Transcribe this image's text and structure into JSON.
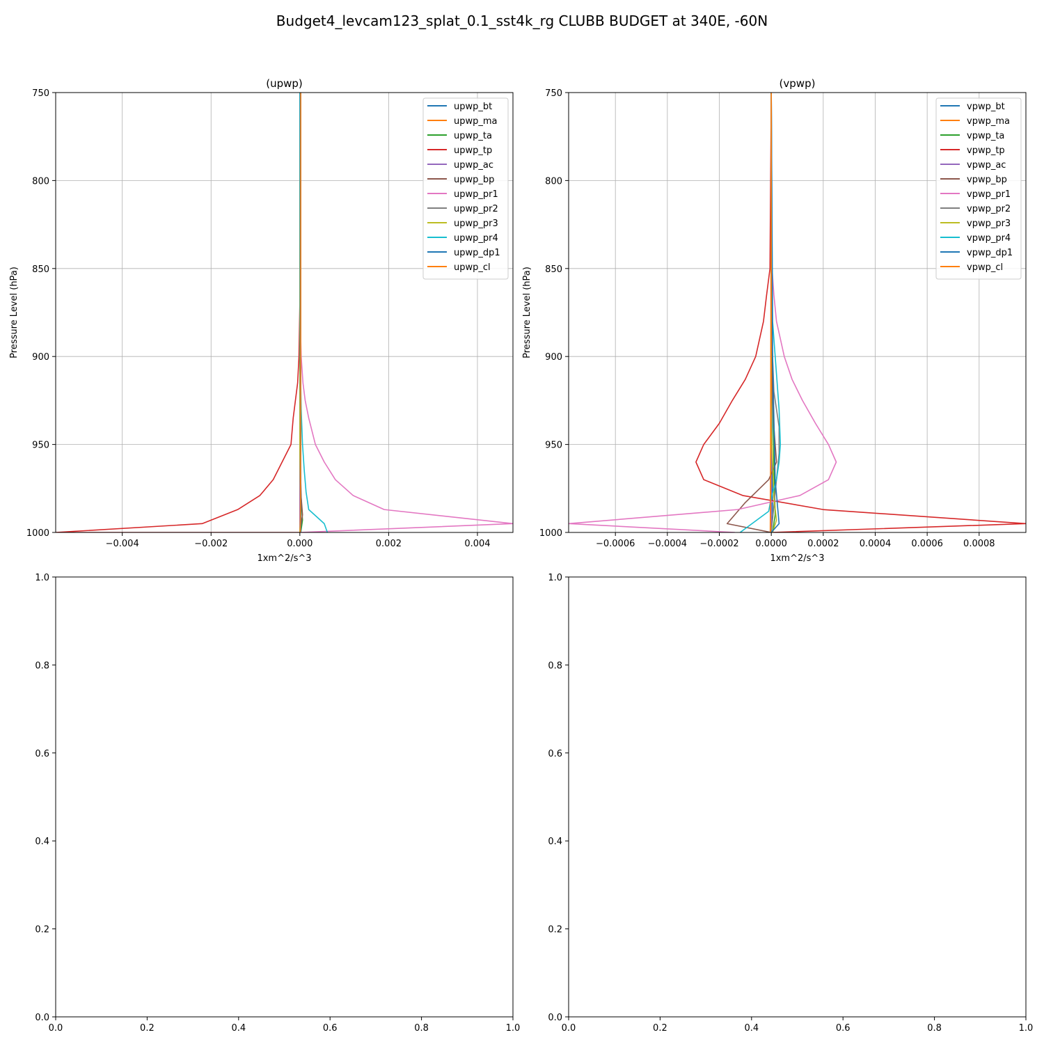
{
  "figure": {
    "title": "Budget4_levcam123_splat_0.1_sst4k_rg CLUBB BUDGET at 340E, -60N"
  },
  "colors": {
    "bt": "#1f77b4",
    "ma": "#ff7f0e",
    "ta": "#2ca02c",
    "tp": "#d62728",
    "ac": "#9467bd",
    "bp": "#8c564b",
    "pr1": "#e377c2",
    "pr2": "#7f7f7f",
    "pr3": "#bcbd22",
    "pr4": "#17becf",
    "dp1": "#1f77b4",
    "cl": "#ff7f0e"
  },
  "chart_data": [
    {
      "type": "line",
      "title": "(upwp)",
      "xlabel": "1xm^2/s^3",
      "ylabel": "Pressure Level (hPa)",
      "xlim": [
        -0.0055,
        0.0048
      ],
      "ylim": [
        1000,
        750
      ],
      "xticks": [
        -0.004,
        -0.002,
        0.0,
        0.002,
        0.004
      ],
      "xtick_labels": [
        "−0.004",
        "−0.002",
        "0.000",
        "0.002",
        "0.004"
      ],
      "yticks": [
        750,
        800,
        850,
        900,
        950,
        1000
      ],
      "ytick_labels": [
        "750",
        "800",
        "850",
        "900",
        "950",
        "1000"
      ],
      "grid": true,
      "legend_position": "top-right",
      "series": [
        {
          "name": "upwp_bt",
          "color": "bt",
          "x": [
            2e-05,
            2e-05,
            2e-05,
            2e-05,
            2e-05
          ],
          "y": [
            750,
            850,
            950,
            995,
            1000
          ]
        },
        {
          "name": "upwp_ma",
          "color": "ma",
          "x": [
            1e-05,
            1e-05,
            1e-05,
            1e-05
          ],
          "y": [
            750,
            900,
            990,
            1000
          ]
        },
        {
          "name": "upwp_ta",
          "color": "ta",
          "x": [
            0.0,
            0.0,
            0.0,
            4e-05,
            6e-05,
            2e-05
          ],
          "y": [
            750,
            900,
            970,
            985,
            993,
            1000
          ]
        },
        {
          "name": "upwp_tp",
          "color": "tp",
          "x": [
            0.0,
            0.0,
            -2e-05,
            -5e-05,
            -0.0001,
            -0.00015,
            -0.0002,
            -0.0004,
            -0.0006,
            -0.0009,
            -0.0014,
            -0.0022,
            -0.0055,
            0.0
          ],
          "y": [
            750,
            870,
            900,
            915,
            925,
            935,
            950,
            960,
            970,
            979,
            987,
            995,
            1000,
            1000
          ]
        },
        {
          "name": "upwp_ac",
          "color": "ac",
          "x": [
            0.0,
            0.0,
            0.0
          ],
          "y": [
            750,
            950,
            1000
          ]
        },
        {
          "name": "upwp_bp",
          "color": "bp",
          "x": [
            0.0,
            0.0,
            3e-05,
            6e-05,
            0.0
          ],
          "y": [
            750,
            950,
            980,
            990,
            1000
          ]
        },
        {
          "name": "upwp_pr1",
          "color": "pr1",
          "x": [
            0.0,
            0.0,
            3e-05,
            7e-05,
            0.00012,
            0.0002,
            0.00035,
            0.00055,
            0.0008,
            0.0012,
            0.0019,
            0.0048,
            0.0
          ],
          "y": [
            750,
            870,
            900,
            915,
            925,
            935,
            950,
            960,
            970,
            979,
            987,
            995,
            1000
          ]
        },
        {
          "name": "upwp_pr2",
          "color": "pr2",
          "x": [
            0.0,
            0.0,
            2e-05,
            0.0
          ],
          "y": [
            750,
            950,
            990,
            1000
          ]
        },
        {
          "name": "upwp_pr3",
          "color": "pr3",
          "x": [
            0.0,
            0.0,
            2e-05,
            0.0
          ],
          "y": [
            750,
            950,
            990,
            1000
          ]
        },
        {
          "name": "upwp_pr4",
          "color": "pr4",
          "x": [
            0.0,
            1e-05,
            3e-05,
            6e-05,
            0.0001,
            0.00014,
            0.0002,
            0.00055,
            0.00062
          ],
          "y": [
            750,
            900,
            930,
            950,
            965,
            977,
            987,
            995,
            1000
          ]
        },
        {
          "name": "upwp_dp1",
          "color": "dp1",
          "x": [
            1e-05,
            1e-05,
            2e-05,
            2e-05
          ],
          "y": [
            750,
            900,
            990,
            1000
          ]
        },
        {
          "name": "upwp_cl",
          "color": "cl",
          "x": [
            2e-05,
            2e-05,
            1e-05
          ],
          "y": [
            750,
            950,
            1000
          ]
        }
      ]
    },
    {
      "type": "line",
      "title": "(vpwp)",
      "xlabel": "1xm^2/s^3",
      "ylabel": "Pressure Level (hPa)",
      "xlim": [
        -0.00078,
        0.00098
      ],
      "ylim": [
        1000,
        750
      ],
      "xticks": [
        -0.0006,
        -0.0004,
        -0.0002,
        0.0,
        0.0002,
        0.0004,
        0.0006,
        0.0008
      ],
      "xtick_labels": [
        "−0.0006",
        "−0.0004",
        "−0.0002",
        "0.0000",
        "0.0002",
        "0.0004",
        "0.0006",
        "0.0008"
      ],
      "yticks": [
        750,
        800,
        850,
        900,
        950,
        1000
      ],
      "ytick_labels": [
        "750",
        "800",
        "850",
        "900",
        "950",
        "1000"
      ],
      "grid": true,
      "legend_position": "top-right",
      "series": [
        {
          "name": "vpwp_bt",
          "color": "bt",
          "x": [
            0.0,
            0.0,
            3e-06,
            5e-06,
            0.0
          ],
          "y": [
            750,
            900,
            960,
            990,
            1000
          ]
        },
        {
          "name": "vpwp_ma",
          "color": "ma",
          "x": [
            0.0,
            -2e-06,
            -3e-06,
            -4e-06
          ],
          "y": [
            750,
            900,
            970,
            1000
          ]
        },
        {
          "name": "vpwp_ta",
          "color": "ta",
          "x": [
            0.0,
            3e-06,
            1e-05,
            1.5e-05,
            5e-06
          ],
          "y": [
            750,
            900,
            960,
            990,
            1000
          ]
        },
        {
          "name": "vpwp_tp",
          "color": "tp",
          "x": [
            0.0,
            -5e-06,
            -1.8e-05,
            -3e-05,
            -6e-05,
            -0.0001,
            -0.00015,
            -0.0002,
            -0.00026,
            -0.00029,
            -0.00026,
            -0.00011,
            0.0002,
            0.00098,
            0.0
          ],
          "y": [
            750,
            850,
            865,
            880,
            900,
            913,
            925,
            938,
            950,
            960,
            970,
            979,
            987,
            995,
            1000
          ]
        },
        {
          "name": "vpwp_ac",
          "color": "ac",
          "x": [
            0.0,
            0.0,
            0.0
          ],
          "y": [
            750,
            950,
            1000
          ]
        },
        {
          "name": "vpwp_bp",
          "color": "bp",
          "x": [
            0.0,
            0.0,
            1e-05,
            2e-05,
            -1e-05,
            -0.0001,
            -0.00017,
            0.0
          ],
          "y": [
            750,
            900,
            940,
            960,
            970,
            983,
            995,
            1000
          ]
        },
        {
          "name": "vpwp_pr1",
          "color": "pr1",
          "x": [
            0.0,
            3e-06,
            1e-05,
            2e-05,
            5e-05,
            8e-05,
            0.00012,
            0.00017,
            0.00022,
            0.00025,
            0.00022,
            0.00011,
            -0.00013,
            -0.00078,
            -0.00014
          ],
          "y": [
            750,
            850,
            865,
            880,
            900,
            913,
            925,
            938,
            950,
            960,
            970,
            979,
            987,
            995,
            1000
          ]
        },
        {
          "name": "vpwp_pr2",
          "color": "pr2",
          "x": [
            0.0,
            0.0,
            1e-05,
            3e-05,
            3e-05,
            0.0
          ],
          "y": [
            750,
            880,
            920,
            940,
            955,
            1000
          ]
        },
        {
          "name": "vpwp_pr3",
          "color": "pr3",
          "x": [
            0.0,
            0.0,
            1e-05,
            2e-05,
            5e-06
          ],
          "y": [
            750,
            940,
            980,
            993,
            1000
          ]
        },
        {
          "name": "vpwp_pr4",
          "color": "pr4",
          "x": [
            0.0,
            5e-06,
            2e-05,
            3e-05,
            3.5e-05,
            3e-05,
            2e-05,
            0.0,
            -1e-05,
            -0.00012
          ],
          "y": [
            750,
            880,
            910,
            930,
            950,
            960,
            970,
            980,
            988,
            1000
          ]
        },
        {
          "name": "vpwp_dp1",
          "color": "dp1",
          "x": [
            0.0,
            5e-06,
            1.5e-05,
            3e-05,
            0.0
          ],
          "y": [
            750,
            900,
            970,
            995,
            1000
          ]
        },
        {
          "name": "vpwp_cl",
          "color": "cl",
          "x": [
            0.0,
            0.0,
            -3e-06,
            -3e-06
          ],
          "y": [
            750,
            900,
            980,
            1000
          ]
        }
      ]
    },
    {
      "type": "line",
      "title": "",
      "xlabel": "",
      "ylabel": "",
      "xlim": [
        0,
        1
      ],
      "ylim": [
        0,
        1
      ],
      "xticks": [
        0.0,
        0.2,
        0.4,
        0.6,
        0.8,
        1.0
      ],
      "xtick_labels": [
        "0.0",
        "0.2",
        "0.4",
        "0.6",
        "0.8",
        "1.0"
      ],
      "yticks": [
        0.0,
        0.2,
        0.4,
        0.6,
        0.8,
        1.0
      ],
      "ytick_labels": [
        "0.0",
        "0.2",
        "0.4",
        "0.6",
        "0.8",
        "1.0"
      ],
      "grid": false,
      "series": []
    },
    {
      "type": "line",
      "title": "",
      "xlabel": "",
      "ylabel": "",
      "xlim": [
        0,
        1
      ],
      "ylim": [
        0,
        1
      ],
      "xticks": [
        0.0,
        0.2,
        0.4,
        0.6,
        0.8,
        1.0
      ],
      "xtick_labels": [
        "0.0",
        "0.2",
        "0.4",
        "0.6",
        "0.8",
        "1.0"
      ],
      "yticks": [
        0.0,
        0.2,
        0.4,
        0.6,
        0.8,
        1.0
      ],
      "ytick_labels": [
        "0.0",
        "0.2",
        "0.4",
        "0.6",
        "0.8",
        "1.0"
      ],
      "grid": false,
      "series": []
    }
  ]
}
